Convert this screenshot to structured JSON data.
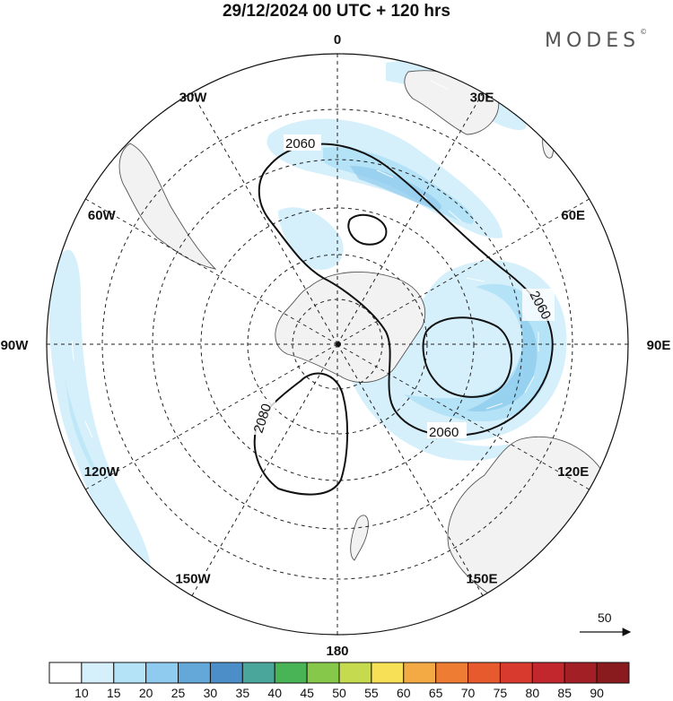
{
  "title": "29/12/2024  00 UTC  + 120 hrs",
  "logo": "MODES",
  "logo_mark": "©",
  "map": {
    "projection": "south polar stereographic",
    "meridian_labels": [
      {
        "text": "0",
        "angle": 0
      },
      {
        "text": "30E",
        "angle": 30
      },
      {
        "text": "60E",
        "angle": 60
      },
      {
        "text": "90E",
        "angle": 90
      },
      {
        "text": "120E",
        "angle": 120
      },
      {
        "text": "150E",
        "angle": 150
      },
      {
        "text": "180",
        "angle": 180
      },
      {
        "text": "150W",
        "angle": 210
      },
      {
        "text": "120W",
        "angle": 240
      },
      {
        "text": "90W",
        "angle": 270
      },
      {
        "text": "60W",
        "angle": 300
      },
      {
        "text": "30W",
        "angle": 330
      }
    ],
    "contours": [
      {
        "value": "2060"
      },
      {
        "value": "2060"
      },
      {
        "value": "2060"
      },
      {
        "value": "2080"
      }
    ],
    "reference_vector": "50"
  },
  "colorbar": {
    "labels": [
      "10",
      "15",
      "20",
      "25",
      "30",
      "35",
      "40",
      "45",
      "50",
      "55",
      "60",
      "65",
      "70",
      "75",
      "80",
      "85",
      "90"
    ],
    "colors": [
      "#ffffff",
      "#d6f0fb",
      "#b4e2f7",
      "#8ecbee",
      "#64a8da",
      "#4b8ec8",
      "#4aa59a",
      "#49b455",
      "#86c84a",
      "#c5da4f",
      "#f7e055",
      "#f3aa44",
      "#ef7c33",
      "#e75a2d",
      "#d83a2d",
      "#c1272d",
      "#a31f26",
      "#891b1f"
    ]
  }
}
